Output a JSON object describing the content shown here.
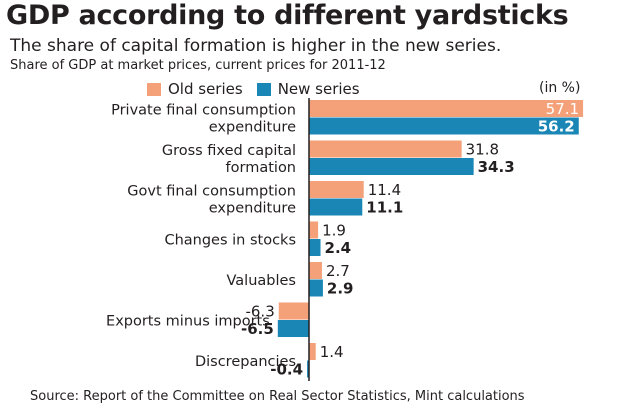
{
  "header": {
    "title": "GDP according to different yardsticks",
    "subtitle": "The share of capital formation is higher in the new series.",
    "note": "Share of GDP at market prices, current prices for 2011-12",
    "unit": "(in %)"
  },
  "footer": {
    "source": "Source: Report of the Committee on Real Sector Statistics, Mint calculations"
  },
  "colors": {
    "old_series": "#f4a17a",
    "new_series": "#1a86b5",
    "axis": "#231f20"
  },
  "chart_data": {
    "type": "bar",
    "orientation": "horizontal",
    "categories": [
      [
        "Private final consumption",
        "expenditure"
      ],
      [
        "Gross fixed capital",
        "formation"
      ],
      [
        "Govt final consumption",
        "expenditure"
      ],
      [
        "Changes in stocks"
      ],
      [
        "Valuables"
      ],
      [
        "Exports minus imports"
      ],
      [
        "Discrepancies"
      ]
    ],
    "series": [
      {
        "name": "Old series",
        "values": [
          57.1,
          31.8,
          11.4,
          1.9,
          2.7,
          -6.3,
          1.4
        ],
        "labels": [
          "57.1",
          "31.8",
          "11.4",
          "1.9",
          "2.7",
          "-6.3",
          "1.4"
        ]
      },
      {
        "name": "New series",
        "values": [
          56.2,
          34.3,
          11.1,
          2.4,
          2.9,
          -6.5,
          -0.4
        ],
        "labels": [
          "56.2",
          "34.3",
          "11.1",
          "2.4",
          "2.9",
          "-6.5",
          "-0.4"
        ]
      }
    ],
    "xlim": [
      -6.5,
      57.1
    ],
    "legend_position": "top",
    "grid": false
  }
}
